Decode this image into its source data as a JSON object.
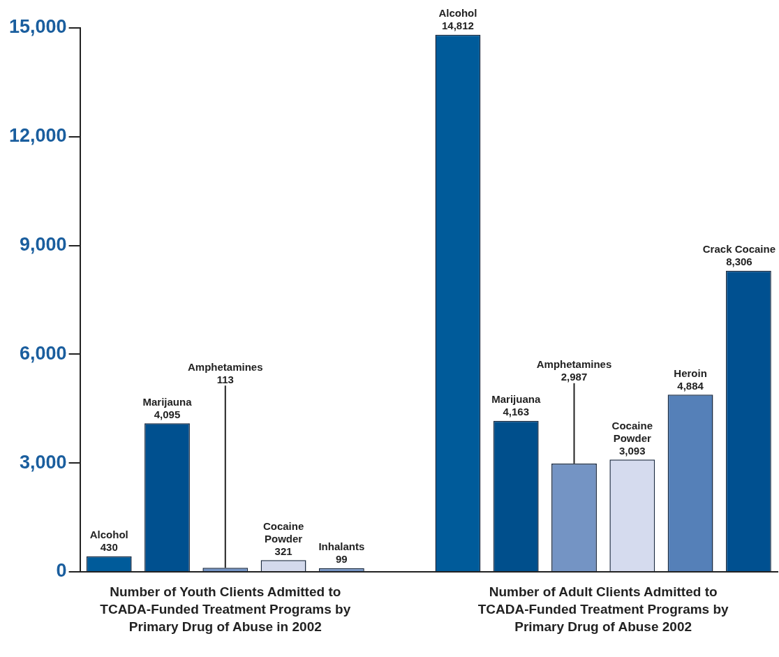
{
  "chart_data": {
    "type": "bar",
    "categories": [
      "Alcohol",
      "Marijauna",
      "Amphetamines",
      "Cocaine Powder",
      "Inhalants",
      null,
      "Alcohol",
      "Marijuana",
      "Amphetamines",
      "Cocaine Powder",
      "Heroin",
      "Crack Cocaine"
    ],
    "values": [
      430,
      4095,
      113,
      321,
      99,
      null,
      14812,
      4163,
      2987,
      3093,
      4884,
      8306
    ],
    "colors": [
      "#005b9a",
      "#00508f",
      "#7393c4",
      "#d3d9ec",
      "#7393c4",
      "#ffffff",
      "#005b9a",
      "#004f8c",
      "#7494c4",
      "#d5dbee",
      "#5580b8",
      "#005090"
    ],
    "value_labels": [
      "430",
      "4,095",
      "113",
      "321",
      "99",
      null,
      "14,812",
      "4,163",
      "2,987",
      "3,093",
      "4,884",
      "8,306"
    ],
    "ylim": [
      0,
      15000
    ],
    "yticks": [
      0,
      {
        "value": 3000,
        "label": "3,000"
      },
      {
        "value": 6000,
        "label": "6,000"
      },
      {
        "value": 9000,
        "label": "9,000"
      },
      {
        "value": 12000,
        "label": "12,000"
      },
      {
        "value": 15000,
        "label": "15,000"
      }
    ],
    "grid": false,
    "legend": false,
    "tick_labels": "y",
    "annotations": [
      "Number of Youth Clients Admitted to TCADA-Funded Treatment Programs by Primary Drug of Abuse in 2002",
      "Number of Adult Clients Admitted to TCADA-Funded Treatment Programs by Primary Drug of Abuse 2002"
    ]
  }
}
